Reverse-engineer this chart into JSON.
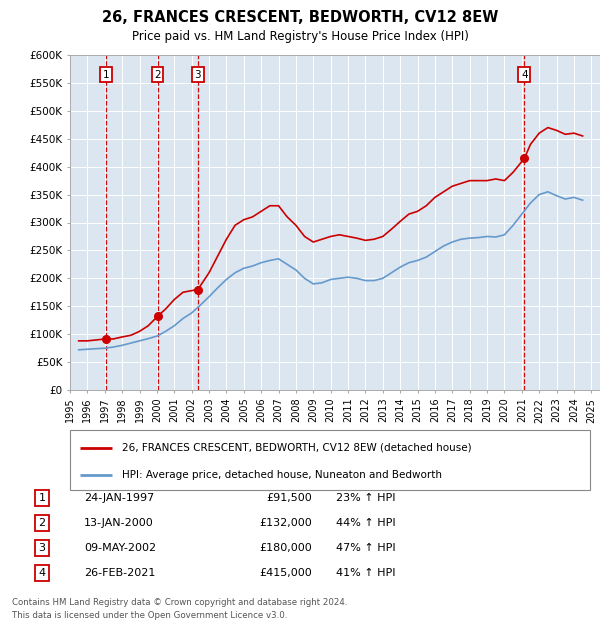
{
  "title": "26, FRANCES CRESCENT, BEDWORTH, CV12 8EW",
  "subtitle": "Price paid vs. HM Land Registry's House Price Index (HPI)",
  "title_fontsize": 10.5,
  "subtitle_fontsize": 8.5,
  "plot_bg_color": "#dce6f0",
  "legend_label_red": "26, FRANCES CRESCENT, BEDWORTH, CV12 8EW (detached house)",
  "legend_label_blue": "HPI: Average price, detached house, Nuneaton and Bedworth",
  "footer": "Contains HM Land Registry data © Crown copyright and database right 2024.\nThis data is licensed under the Open Government Licence v3.0.",
  "sales": [
    {
      "index": 1,
      "date_label": "24-JAN-1997",
      "date_x": 1997.07,
      "price": 91500,
      "pct": "23%",
      "dir": "↑"
    },
    {
      "index": 2,
      "date_label": "13-JAN-2000",
      "date_x": 2000.04,
      "price": 132000,
      "pct": "44%",
      "dir": "↑"
    },
    {
      "index": 3,
      "date_label": "09-MAY-2002",
      "date_x": 2002.36,
      "price": 180000,
      "pct": "47%",
      "dir": "↑"
    },
    {
      "index": 4,
      "date_label": "26-FEB-2021",
      "date_x": 2021.15,
      "price": 415000,
      "pct": "41%",
      "dir": "↑"
    }
  ],
  "red_line": {
    "x": [
      1995.5,
      1996.0,
      1997.07,
      1997.5,
      1998.0,
      1998.5,
      1999.0,
      1999.5,
      2000.04,
      2000.5,
      2001.0,
      2001.5,
      2002.0,
      2002.36,
      2003.0,
      2003.5,
      2004.0,
      2004.5,
      2005.0,
      2005.5,
      2006.0,
      2006.5,
      2007.0,
      2007.5,
      2008.0,
      2008.5,
      2009.0,
      2009.5,
      2010.0,
      2010.5,
      2011.0,
      2011.5,
      2012.0,
      2012.5,
      2013.0,
      2013.5,
      2014.0,
      2014.5,
      2015.0,
      2015.5,
      2016.0,
      2016.5,
      2017.0,
      2017.5,
      2018.0,
      2018.5,
      2019.0,
      2019.5,
      2020.0,
      2020.5,
      2021.15,
      2021.5,
      2022.0,
      2022.5,
      2023.0,
      2023.5,
      2024.0,
      2024.5
    ],
    "y": [
      88000,
      88000,
      91500,
      91500,
      95000,
      98000,
      105000,
      115000,
      132000,
      145000,
      162000,
      175000,
      178000,
      180000,
      210000,
      240000,
      270000,
      295000,
      305000,
      310000,
      320000,
      330000,
      330000,
      310000,
      295000,
      275000,
      265000,
      270000,
      275000,
      278000,
      275000,
      272000,
      268000,
      270000,
      275000,
      288000,
      302000,
      315000,
      320000,
      330000,
      345000,
      355000,
      365000,
      370000,
      375000,
      375000,
      375000,
      378000,
      375000,
      390000,
      415000,
      440000,
      460000,
      470000,
      465000,
      458000,
      460000,
      455000
    ]
  },
  "blue_line": {
    "x": [
      1995.5,
      1996.0,
      1996.5,
      1997.07,
      1997.5,
      1998.0,
      1998.5,
      1999.0,
      1999.5,
      2000.04,
      2000.5,
      2001.0,
      2001.5,
      2002.0,
      2002.5,
      2003.0,
      2003.5,
      2004.0,
      2004.5,
      2005.0,
      2005.5,
      2006.0,
      2006.5,
      2007.0,
      2007.5,
      2008.0,
      2008.5,
      2009.0,
      2009.5,
      2010.0,
      2010.5,
      2011.0,
      2011.5,
      2012.0,
      2012.5,
      2013.0,
      2013.5,
      2014.0,
      2014.5,
      2015.0,
      2015.5,
      2016.0,
      2016.5,
      2017.0,
      2017.5,
      2018.0,
      2018.5,
      2019.0,
      2019.5,
      2020.0,
      2020.5,
      2021.0,
      2021.5,
      2022.0,
      2022.5,
      2023.0,
      2023.5,
      2024.0,
      2024.5
    ],
    "y": [
      72000,
      73000,
      74000,
      75000,
      77000,
      80000,
      84000,
      88000,
      92000,
      97000,
      105000,
      115000,
      128000,
      138000,
      152000,
      167000,
      183000,
      198000,
      210000,
      218000,
      222000,
      228000,
      232000,
      235000,
      225000,
      215000,
      200000,
      190000,
      192000,
      198000,
      200000,
      202000,
      200000,
      196000,
      196000,
      200000,
      210000,
      220000,
      228000,
      232000,
      238000,
      248000,
      258000,
      265000,
      270000,
      272000,
      273000,
      275000,
      274000,
      278000,
      295000,
      315000,
      335000,
      350000,
      355000,
      348000,
      342000,
      345000,
      340000
    ]
  },
  "ylim": [
    0,
    600000
  ],
  "yticks": [
    0,
    50000,
    100000,
    150000,
    200000,
    250000,
    300000,
    350000,
    400000,
    450000,
    500000,
    550000,
    600000
  ],
  "xlim": [
    1995,
    2025.5
  ],
  "xticks": [
    1995,
    1996,
    1997,
    1998,
    1999,
    2000,
    2001,
    2002,
    2003,
    2004,
    2005,
    2006,
    2007,
    2008,
    2009,
    2010,
    2011,
    2012,
    2013,
    2014,
    2015,
    2016,
    2017,
    2018,
    2019,
    2020,
    2021,
    2022,
    2023,
    2024,
    2025
  ],
  "red_color": "#cc0000",
  "blue_color": "#6699cc",
  "vline_color": "#cc0000",
  "box_color": "#cc0000",
  "grid_color": "#ffffff",
  "spine_color": "#aaaaaa"
}
